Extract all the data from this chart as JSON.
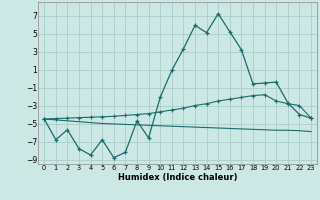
{
  "xlabel": "Humidex (Indice chaleur)",
  "xlim": [
    -0.5,
    23.5
  ],
  "ylim": [
    -9.5,
    8.5
  ],
  "yticks": [
    -9,
    -7,
    -5,
    -3,
    -1,
    1,
    3,
    5,
    7
  ],
  "xticks": [
    0,
    1,
    2,
    3,
    4,
    5,
    6,
    7,
    8,
    9,
    10,
    11,
    12,
    13,
    14,
    15,
    16,
    17,
    18,
    19,
    20,
    21,
    22,
    23
  ],
  "bg_color": "#cce8e5",
  "grid_color": "#aaccca",
  "line_color": "#1a6b6b",
  "main_x": [
    0,
    1,
    2,
    3,
    4,
    5,
    6,
    7,
    8,
    9,
    10,
    11,
    12,
    13,
    14,
    15,
    16,
    17,
    18,
    19,
    20,
    21,
    22,
    23
  ],
  "main_y": [
    -4.5,
    -6.8,
    -5.7,
    -7.8,
    -8.5,
    -6.8,
    -8.8,
    -8.2,
    -4.7,
    -6.6,
    -2.1,
    0.9,
    3.3,
    5.9,
    5.1,
    7.2,
    5.2,
    3.2,
    -0.6,
    -0.5,
    -0.4,
    -2.7,
    -4.0,
    -4.4
  ],
  "upper_x": [
    0,
    1,
    2,
    3,
    4,
    5,
    6,
    7,
    8,
    9,
    10,
    11,
    12,
    13,
    14,
    15,
    16,
    17,
    18,
    19,
    20,
    21,
    22,
    23
  ],
  "upper_y": [
    -4.5,
    -4.45,
    -4.4,
    -4.35,
    -4.3,
    -4.25,
    -4.2,
    -4.1,
    -4.0,
    -3.9,
    -3.7,
    -3.5,
    -3.3,
    -3.0,
    -2.8,
    -2.5,
    -2.3,
    -2.1,
    -1.9,
    -1.8,
    -2.5,
    -2.8,
    -3.0,
    -4.4
  ],
  "lower_x": [
    0,
    1,
    2,
    3,
    4,
    5,
    6,
    7,
    8,
    9,
    10,
    11,
    12,
    13,
    14,
    15,
    16,
    17,
    18,
    19,
    20,
    21,
    22,
    23
  ],
  "lower_y": [
    -4.5,
    -4.6,
    -4.7,
    -4.8,
    -4.9,
    -5.0,
    -5.05,
    -5.1,
    -5.15,
    -5.2,
    -5.25,
    -5.3,
    -5.35,
    -5.4,
    -5.45,
    -5.5,
    -5.55,
    -5.6,
    -5.65,
    -5.7,
    -5.75,
    -5.75,
    -5.8,
    -5.9
  ]
}
